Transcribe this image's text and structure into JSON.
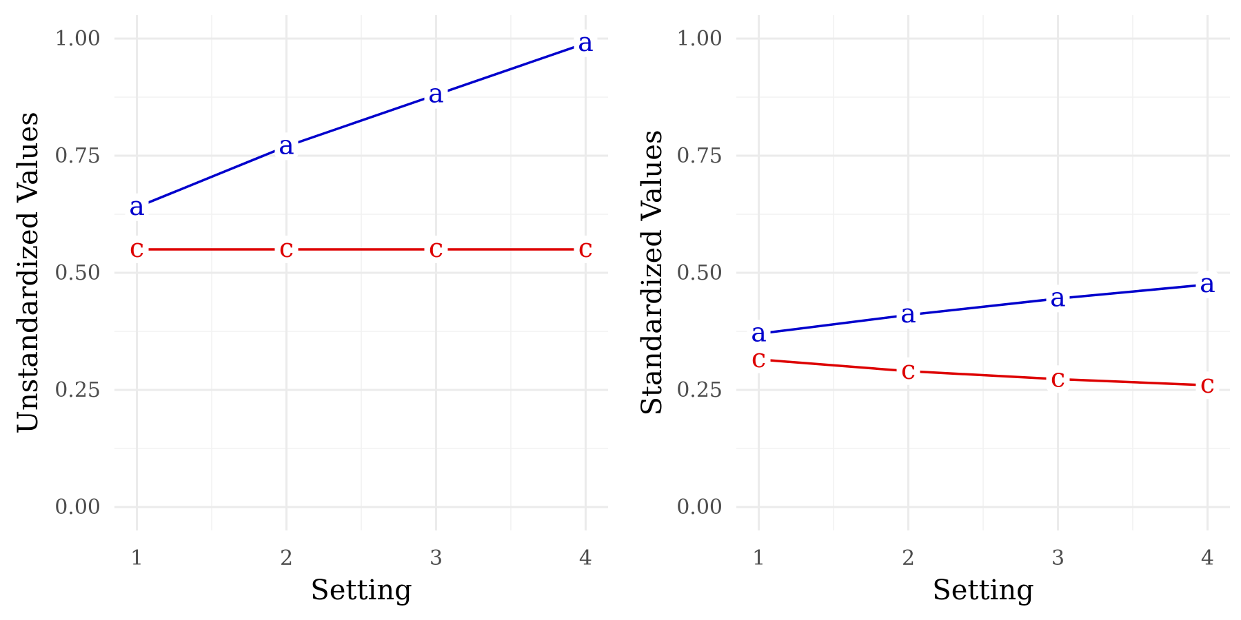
{
  "chart_data": [
    {
      "type": "line",
      "xlabel": "Setting",
      "ylabel": "Unstandardized Values",
      "x": [
        1,
        2,
        3,
        4
      ],
      "x_tick_labels": [
        "1",
        "2",
        "3",
        "4"
      ],
      "y_tick_labels": [
        "0.00",
        "0.25",
        "0.50",
        "0.75",
        "1.00"
      ],
      "xlim": [
        0.85,
        4.15
      ],
      "ylim": [
        -0.05,
        1.05
      ],
      "grid": true,
      "series": [
        {
          "name": "a",
          "label": "a",
          "values": [
            0.64,
            0.77,
            0.88,
            0.99
          ],
          "color": "#0000cc"
        },
        {
          "name": "c",
          "label": "c",
          "values": [
            0.55,
            0.55,
            0.55,
            0.55
          ],
          "color": "#dd0000"
        }
      ]
    },
    {
      "type": "line",
      "xlabel": "Setting",
      "ylabel": "Standardized Values",
      "x": [
        1,
        2,
        3,
        4
      ],
      "x_tick_labels": [
        "1",
        "2",
        "3",
        "4"
      ],
      "y_tick_labels": [
        "0.00",
        "0.25",
        "0.50",
        "0.75",
        "1.00"
      ],
      "xlim": [
        0.85,
        4.15
      ],
      "ylim": [
        -0.05,
        1.05
      ],
      "grid": true,
      "series": [
        {
          "name": "a",
          "label": "a",
          "values": [
            0.37,
            0.41,
            0.445,
            0.475
          ],
          "color": "#0000cc"
        },
        {
          "name": "c",
          "label": "c",
          "values": [
            0.315,
            0.29,
            0.273,
            0.26
          ],
          "color": "#dd0000"
        }
      ]
    }
  ]
}
